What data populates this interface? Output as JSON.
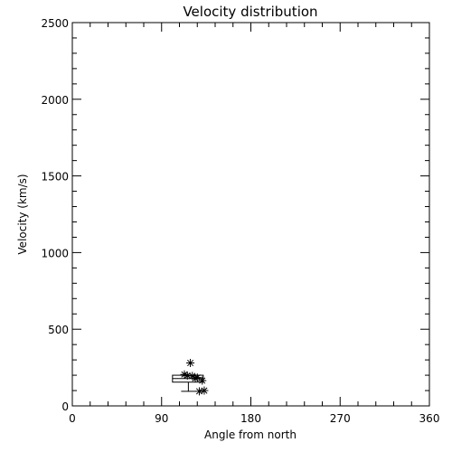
{
  "chart_data": {
    "type": "scatter",
    "title": "Velocity distribution",
    "xlabel": "Angle from north",
    "ylabel": "Velocity (km/s)",
    "xlim": [
      0,
      360
    ],
    "ylim": [
      0,
      2500
    ],
    "x_ticks": [
      0,
      90,
      180,
      270,
      360
    ],
    "y_ticks": [
      0,
      500,
      1000,
      1500,
      2000,
      2500
    ],
    "grid": false,
    "marker": "asterisk",
    "points": [
      {
        "x": 113,
        "y": 205
      },
      {
        "x": 116,
        "y": 198
      },
      {
        "x": 119,
        "y": 280
      },
      {
        "x": 121,
        "y": 195
      },
      {
        "x": 124,
        "y": 180
      },
      {
        "x": 126,
        "y": 185
      },
      {
        "x": 128,
        "y": 95
      },
      {
        "x": 131,
        "y": 165
      },
      {
        "x": 133,
        "y": 100
      }
    ],
    "boxplot": {
      "x_min": 101,
      "x_max": 132,
      "q1": 155,
      "median": 178,
      "q3": 200,
      "whisker_low": 95,
      "whisker_high": 280,
      "x_center": 117
    }
  }
}
